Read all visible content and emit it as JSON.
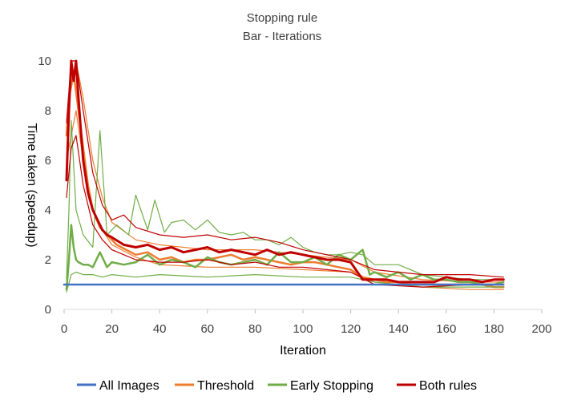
{
  "chart_data": {
    "type": "line",
    "title": "Stopping rule",
    "subtitle": "Bar - Iterations",
    "xlabel": "Iteration",
    "ylabel": "Time taken (speedup)",
    "xlim": [
      0,
      200
    ],
    "ylim": [
      0,
      10
    ],
    "xticks": [
      0,
      20,
      40,
      60,
      80,
      100,
      120,
      140,
      160,
      180,
      200
    ],
    "yticks": [
      0,
      2,
      4,
      6,
      8,
      10
    ],
    "grid": false,
    "legend": "bottom",
    "series": [
      {
        "name": "All Images",
        "color": "#4472C4",
        "lines": [
          {
            "role": "main",
            "x": [
              0,
              184
            ],
            "y": [
              1.0,
              1.0
            ]
          }
        ]
      },
      {
        "name": "Threshold",
        "color": "#ED7D31",
        "lines": [
          {
            "role": "main",
            "x": [
              1,
              2,
              4,
              6,
              8,
              10,
              12,
              15,
              18,
              22,
              26,
              30,
              35,
              40,
              45,
              50,
              55,
              60,
              65,
              70,
              75,
              80,
              85,
              90,
              95,
              100,
              105,
              110,
              115,
              120,
              125,
              130,
              135,
              140,
              145,
              150,
              155,
              160,
              165,
              170,
              175,
              180,
              184
            ],
            "y": [
              7.0,
              8.5,
              9.5,
              8.0,
              6.5,
              5.0,
              4.0,
              3.3,
              3.0,
              2.6,
              2.4,
              2.2,
              2.3,
              2.0,
              2.1,
              1.9,
              2.0,
              2.0,
              2.1,
              2.2,
              2.0,
              2.1,
              2.0,
              1.9,
              1.8,
              1.9,
              1.9,
              1.8,
              1.7,
              1.6,
              1.3,
              1.2,
              1.1,
              1.1,
              1.0,
              1.0,
              1.0,
              1.0,
              1.0,
              1.0,
              1.0,
              0.9,
              0.9
            ]
          },
          {
            "role": "upper",
            "x": [
              1,
              3,
              5,
              8,
              12,
              16,
              20,
              30,
              40,
              60,
              80,
              100,
              120,
              130,
              150,
              170,
              184
            ],
            "y": [
              7.5,
              10.0,
              10.0,
              8.5,
              6.0,
              4.5,
              3.5,
              2.8,
              2.6,
              2.4,
              2.4,
              2.2,
              2.0,
              1.5,
              1.2,
              1.1,
              1.1
            ]
          },
          {
            "role": "lower",
            "x": [
              1,
              3,
              5,
              8,
              12,
              16,
              20,
              30,
              40,
              60,
              80,
              100,
              120,
              130,
              150,
              170,
              184
            ],
            "y": [
              6.0,
              7.0,
              8.0,
              6.0,
              4.0,
              3.2,
              2.6,
              2.1,
              1.8,
              1.7,
              1.7,
              1.6,
              1.5,
              1.1,
              0.9,
              0.8,
              0.8
            ]
          }
        ]
      },
      {
        "name": "Early Stopping",
        "color": "#70AD47",
        "lines": [
          {
            "role": "main",
            "x": [
              1,
              2,
              3,
              4,
              5,
              6,
              8,
              10,
              12,
              15,
              18,
              20,
              25,
              30,
              35,
              40,
              45,
              50,
              55,
              60,
              65,
              70,
              75,
              80,
              85,
              90,
              95,
              100,
              105,
              110,
              115,
              120,
              125,
              128,
              130,
              135,
              140,
              145,
              150,
              155,
              160,
              165,
              170,
              175,
              180,
              184
            ],
            "y": [
              0.8,
              2.0,
              3.4,
              2.5,
              2.0,
              1.9,
              1.8,
              1.8,
              1.7,
              2.3,
              1.7,
              1.9,
              1.8,
              1.9,
              2.2,
              1.8,
              2.0,
              1.9,
              1.7,
              2.1,
              1.9,
              1.8,
              1.9,
              2.0,
              1.8,
              2.3,
              1.9,
              1.9,
              2.1,
              1.8,
              2.2,
              2.0,
              2.4,
              1.4,
              1.5,
              1.3,
              1.5,
              1.2,
              1.4,
              1.2,
              1.2,
              1.1,
              1.1,
              1.0,
              1.0,
              1.1
            ]
          },
          {
            "role": "upper",
            "x": [
              1,
              2,
              3,
              5,
              8,
              12,
              15,
              18,
              22,
              27,
              30,
              35,
              38,
              42,
              45,
              50,
              55,
              60,
              65,
              70,
              75,
              80,
              85,
              90,
              95,
              100,
              105,
              110,
              115,
              120,
              125,
              130,
              140,
              150,
              160,
              170,
              184
            ],
            "y": [
              1.2,
              4.0,
              7.6,
              4.0,
              3.0,
              2.5,
              7.2,
              3.0,
              3.4,
              3.0,
              4.6,
              3.2,
              4.4,
              3.1,
              3.5,
              3.6,
              3.2,
              3.6,
              3.1,
              3.0,
              3.1,
              2.8,
              2.8,
              2.6,
              2.9,
              2.5,
              2.3,
              2.2,
              2.2,
              2.3,
              2.2,
              1.8,
              1.8,
              1.4,
              1.3,
              1.2,
              1.2
            ]
          },
          {
            "role": "lower",
            "x": [
              1,
              3,
              5,
              8,
              12,
              16,
              20,
              30,
              40,
              60,
              80,
              100,
              120,
              130,
              150,
              170,
              184
            ],
            "y": [
              0.7,
              1.4,
              1.5,
              1.4,
              1.4,
              1.3,
              1.4,
              1.3,
              1.4,
              1.3,
              1.4,
              1.3,
              1.3,
              1.1,
              0.9,
              0.9,
              0.9
            ]
          }
        ]
      },
      {
        "name": "Both rules",
        "color": "#C00000",
        "lines": [
          {
            "role": "main",
            "x": [
              1,
              2,
              3,
              4,
              5,
              6,
              7,
              8,
              10,
              12,
              14,
              16,
              18,
              20,
              25,
              30,
              35,
              40,
              45,
              50,
              55,
              60,
              65,
              70,
              75,
              80,
              85,
              90,
              95,
              100,
              105,
              110,
              115,
              120,
              125,
              130,
              135,
              140,
              145,
              150,
              155,
              160,
              165,
              170,
              175,
              180,
              184
            ],
            "y": [
              5.2,
              8.0,
              10.0,
              9.2,
              10.0,
              8.5,
              7.2,
              6.0,
              4.7,
              4.0,
              3.6,
              3.2,
              3.0,
              2.9,
              2.6,
              2.5,
              2.6,
              2.4,
              2.5,
              2.3,
              2.4,
              2.5,
              2.3,
              2.4,
              2.3,
              2.2,
              2.4,
              2.2,
              2.3,
              2.2,
              2.1,
              2.0,
              2.0,
              1.9,
              1.2,
              1.2,
              1.2,
              1.1,
              1.1,
              1.1,
              1.1,
              1.3,
              1.2,
              1.2,
              1.1,
              1.2,
              1.2
            ]
          },
          {
            "role": "upper",
            "x": [
              1,
              3,
              5,
              8,
              12,
              16,
              20,
              25,
              30,
              40,
              50,
              60,
              70,
              80,
              90,
              100,
              110,
              120,
              130,
              150,
              170,
              184
            ],
            "y": [
              7.5,
              10.0,
              10.0,
              8.0,
              5.5,
              4.2,
              3.6,
              3.8,
              3.3,
              3.0,
              2.9,
              3.0,
              2.8,
              2.9,
              2.7,
              2.4,
              2.2,
              2.0,
              1.6,
              1.4,
              1.4,
              1.3
            ]
          },
          {
            "role": "lower",
            "x": [
              1,
              3,
              5,
              8,
              12,
              16,
              20,
              25,
              30,
              40,
              50,
              60,
              70,
              80,
              90,
              100,
              110,
              120,
              130,
              150,
              170,
              184
            ],
            "y": [
              4.5,
              6.5,
              7.0,
              5.0,
              3.4,
              2.8,
              2.4,
              2.2,
              2.0,
              1.9,
              1.9,
              2.0,
              1.8,
              1.9,
              1.7,
              1.7,
              1.6,
              1.5,
              1.0,
              0.9,
              1.0,
              1.0
            ]
          }
        ]
      }
    ]
  }
}
